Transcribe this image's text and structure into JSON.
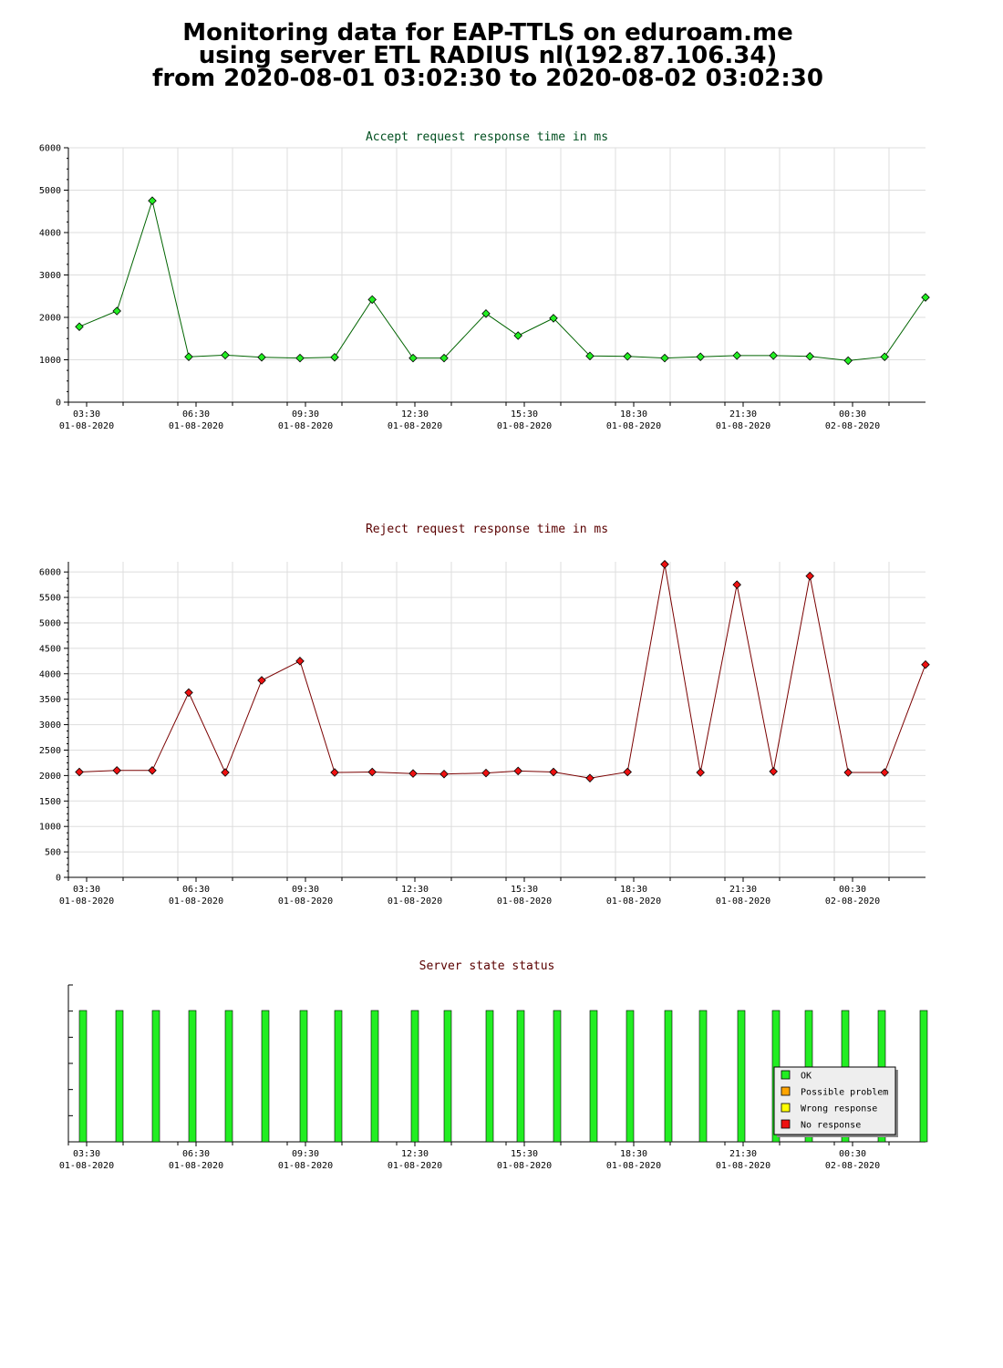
{
  "page": {
    "title_lines": [
      "Monitoring data for EAP-TTLS on eduroam.me",
      "using server ETL RADIUS nl(192.87.106.34)",
      "from 2020-08-01 03:02:30 to 2020-08-02 03:02:30"
    ]
  },
  "colors": {
    "accept_title": "#004f1f",
    "reject_title": "#5a0000",
    "status_title": "#5a0000",
    "accept_line": "#006400",
    "accept_point": "#22ee22",
    "reject_line": "#7a0000",
    "reject_point": "#ee1111",
    "status_ok": "#22ee22",
    "status_possible": "#ffa500",
    "status_wrong": "#ffff00",
    "status_none": "#ee1111",
    "grid": "#dddddd"
  },
  "chart_data": [
    {
      "id": "accept",
      "type": "line",
      "title": "Accept request response time in ms",
      "x_range_hours": [
        3.0,
        26.5
      ],
      "ylim": [
        0,
        6000
      ],
      "y_ticks": [
        0,
        1000,
        2000,
        3000,
        4000,
        5000,
        6000
      ],
      "x_ticks": [
        {
          "hour": 3.5,
          "time": "03:30",
          "date": "01-08-2020"
        },
        {
          "hour": 6.5,
          "time": "06:30",
          "date": "01-08-2020"
        },
        {
          "hour": 9.5,
          "time": "09:30",
          "date": "01-08-2020"
        },
        {
          "hour": 12.5,
          "time": "12:30",
          "date": "01-08-2020"
        },
        {
          "hour": 15.5,
          "time": "15:30",
          "date": "01-08-2020"
        },
        {
          "hour": 18.5,
          "time": "18:30",
          "date": "01-08-2020"
        },
        {
          "hour": 21.5,
          "time": "21:30",
          "date": "01-08-2020"
        },
        {
          "hour": 24.5,
          "time": "00:30",
          "date": "02-08-2020"
        }
      ],
      "x": [
        3.3,
        4.33,
        5.3,
        6.3,
        7.3,
        8.3,
        9.35,
        10.3,
        11.33,
        12.45,
        13.3,
        14.45,
        15.33,
        16.3,
        17.3,
        18.33,
        19.35,
        20.33,
        21.33,
        22.33,
        23.33,
        24.38,
        25.38,
        26.5
      ],
      "values": [
        1780,
        2150,
        4750,
        1070,
        1110,
        1060,
        1040,
        1060,
        2420,
        1040,
        1040,
        2090,
        1570,
        1980,
        1090,
        1080,
        1040,
        1070,
        1100,
        1100,
        1080,
        980,
        1070,
        2470
      ],
      "grid": true
    },
    {
      "id": "reject",
      "type": "line",
      "title": "Reject request response time in ms",
      "x_range_hours": [
        3.0,
        26.5
      ],
      "ylim": [
        0,
        6200
      ],
      "y_ticks": [
        0,
        500,
        1000,
        1500,
        2000,
        2500,
        3000,
        3500,
        4000,
        4500,
        5000,
        5500,
        6000
      ],
      "x_ticks": [
        {
          "hour": 3.5,
          "time": "03:30",
          "date": "01-08-2020"
        },
        {
          "hour": 6.5,
          "time": "06:30",
          "date": "01-08-2020"
        },
        {
          "hour": 9.5,
          "time": "09:30",
          "date": "01-08-2020"
        },
        {
          "hour": 12.5,
          "time": "12:30",
          "date": "01-08-2020"
        },
        {
          "hour": 15.5,
          "time": "15:30",
          "date": "01-08-2020"
        },
        {
          "hour": 18.5,
          "time": "18:30",
          "date": "01-08-2020"
        },
        {
          "hour": 21.5,
          "time": "21:30",
          "date": "01-08-2020"
        },
        {
          "hour": 24.5,
          "time": "00:30",
          "date": "02-08-2020"
        }
      ],
      "x": [
        3.3,
        4.33,
        5.3,
        6.3,
        7.3,
        8.3,
        9.35,
        10.3,
        11.33,
        12.45,
        13.3,
        14.45,
        15.33,
        16.3,
        17.3,
        18.33,
        19.35,
        20.33,
        21.33,
        22.33,
        23.33,
        24.38,
        25.38,
        26.5
      ],
      "values": [
        2070,
        2100,
        2100,
        3630,
        2060,
        3870,
        4250,
        2060,
        2070,
        2040,
        2030,
        2050,
        2090,
        2070,
        1950,
        2070,
        6150,
        2060,
        5750,
        2080,
        5920,
        2060,
        2060,
        4180
      ],
      "grid": true
    },
    {
      "id": "status",
      "type": "bar",
      "title": "Server state status",
      "x_range_hours": [
        3.0,
        26.5
      ],
      "x_ticks": [
        {
          "hour": 3.5,
          "time": "03:30",
          "date": "01-08-2020"
        },
        {
          "hour": 6.5,
          "time": "06:30",
          "date": "01-08-2020"
        },
        {
          "hour": 9.5,
          "time": "09:30",
          "date": "01-08-2020"
        },
        {
          "hour": 12.5,
          "time": "12:30",
          "date": "01-08-2020"
        },
        {
          "hour": 15.5,
          "time": "15:30",
          "date": "01-08-2020"
        },
        {
          "hour": 18.5,
          "time": "18:30",
          "date": "01-08-2020"
        },
        {
          "hour": 21.5,
          "time": "21:30",
          "date": "01-08-2020"
        },
        {
          "hour": 24.5,
          "time": "00:30",
          "date": "02-08-2020"
        }
      ],
      "x": [
        3.4,
        4.4,
        5.4,
        6.4,
        7.4,
        8.4,
        9.45,
        10.4,
        11.4,
        12.5,
        13.4,
        14.55,
        15.4,
        16.4,
        17.4,
        18.4,
        19.45,
        20.4,
        21.45,
        22.4,
        23.3,
        24.3,
        25.3,
        26.45
      ],
      "states": [
        "OK",
        "OK",
        "OK",
        "OK",
        "OK",
        "OK",
        "OK",
        "OK",
        "OK",
        "OK",
        "OK",
        "OK",
        "OK",
        "OK",
        "OK",
        "OK",
        "OK",
        "OK",
        "OK",
        "OK",
        "OK",
        "OK",
        "OK",
        "OK"
      ],
      "legend": {
        "position": "bottom-right",
        "entries": [
          {
            "label": "OK",
            "color_key": "status_ok"
          },
          {
            "label": "Possible problem",
            "color_key": "status_possible"
          },
          {
            "label": "Wrong response",
            "color_key": "status_wrong"
          },
          {
            "label": "No response",
            "color_key": "status_none"
          }
        ]
      }
    }
  ]
}
